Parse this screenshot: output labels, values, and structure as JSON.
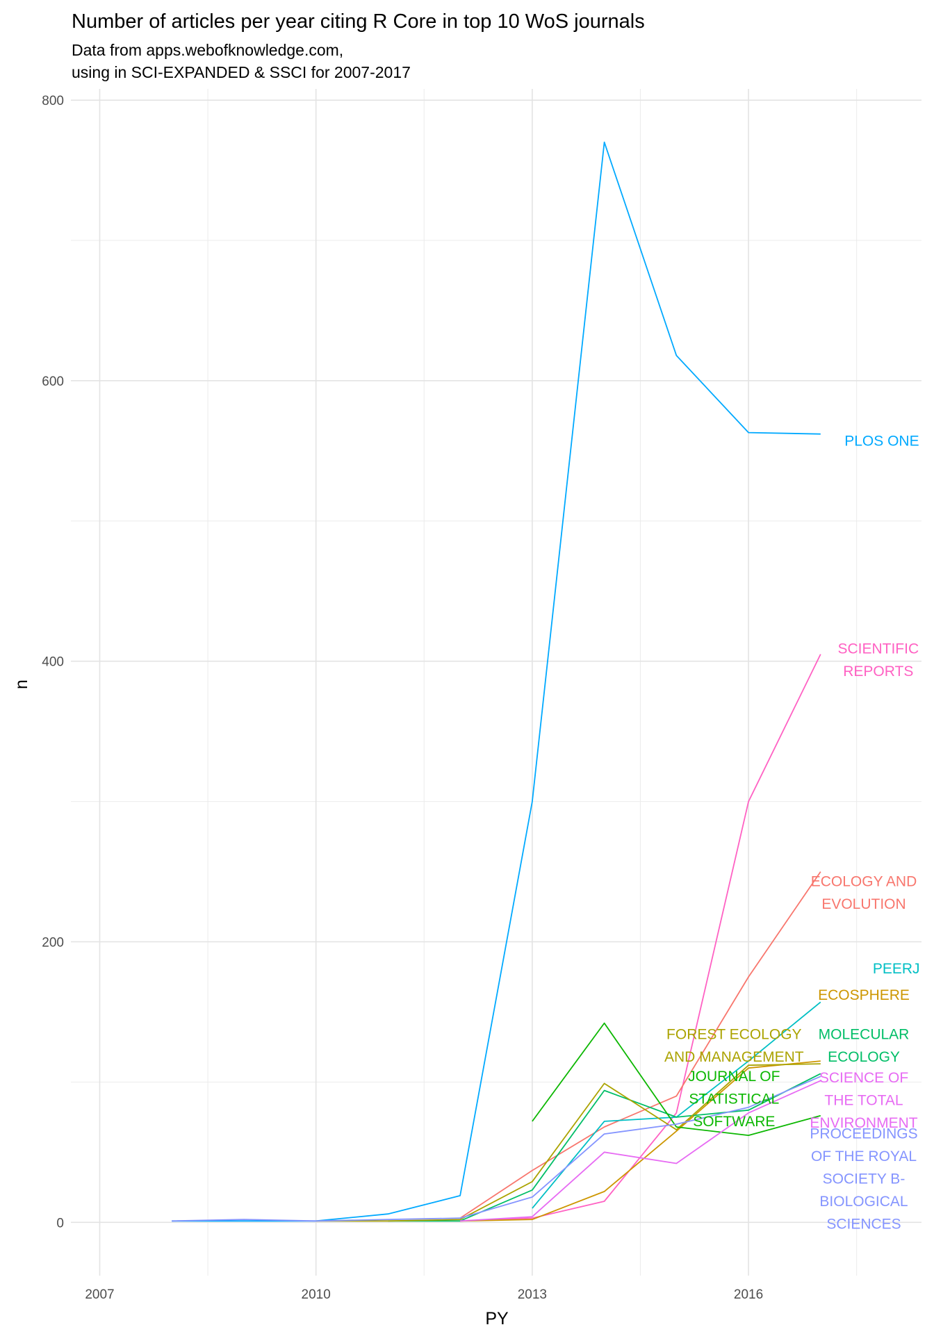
{
  "chart_data": {
    "type": "line",
    "title": "Number of articles per year citing R Core in top 10 WoS journals",
    "subtitle_lines": [
      "Data from apps.webofknowledge.com,",
      "using in SCI-EXPANDED & SSCI for 2007-2017"
    ],
    "xlabel": "PY",
    "ylabel": "n",
    "xlim": [
      2006.6,
      2018.4
    ],
    "ylim": [
      -38,
      808
    ],
    "x_ticks": [
      2007,
      2010,
      2013,
      2016
    ],
    "y_ticks": [
      0,
      200,
      400,
      600,
      800
    ],
    "grid": true,
    "legend": "direct labels at line ends",
    "series": [
      {
        "name": "PLOS ONE",
        "label_lines": [
          "PLOS ONE"
        ],
        "color": "#00a9ff",
        "points": [
          [
            2008,
            1
          ],
          [
            2009,
            1
          ],
          [
            2010,
            1
          ],
          [
            2011,
            6
          ],
          [
            2012,
            19
          ],
          [
            2013,
            300
          ],
          [
            2014,
            770
          ],
          [
            2015,
            618
          ],
          [
            2016,
            563
          ],
          [
            2017,
            562
          ]
        ]
      },
      {
        "name": "SCIENTIFIC REPORTS",
        "label_lines": [
          "SCIENTIFIC",
          "REPORTS"
        ],
        "color": "#ff61c3",
        "points": [
          [
            2012,
            1
          ],
          [
            2013,
            3
          ],
          [
            2014,
            15
          ],
          [
            2015,
            78
          ],
          [
            2016,
            300
          ],
          [
            2017,
            405
          ]
        ]
      },
      {
        "name": "ECOLOGY AND EVOLUTION",
        "label_lines": [
          "ECOLOGY AND",
          "EVOLUTION"
        ],
        "color": "#f8766d",
        "points": [
          [
            2012,
            3
          ],
          [
            2013,
            37
          ],
          [
            2014,
            68
          ],
          [
            2015,
            90
          ],
          [
            2016,
            175
          ],
          [
            2017,
            250
          ]
        ]
      },
      {
        "name": "PEERJ",
        "label_lines": [
          "PEERJ"
        ],
        "color": "#00bfc4",
        "points": [
          [
            2013,
            10
          ],
          [
            2014,
            72
          ],
          [
            2015,
            75
          ],
          [
            2016,
            115
          ],
          [
            2017,
            157
          ]
        ]
      },
      {
        "name": "ECOSPHERE",
        "label_lines": [
          "ECOSPHERE"
        ],
        "color": "#cd9600",
        "points": [
          [
            2012,
            1
          ],
          [
            2013,
            2
          ],
          [
            2014,
            22
          ],
          [
            2015,
            65
          ],
          [
            2016,
            110
          ],
          [
            2017,
            115
          ]
        ]
      },
      {
        "name": "MOLECULAR ECOLOGY",
        "label_lines": [
          "MOLECULAR",
          "ECOLOGY"
        ],
        "color": "#00be67",
        "points": [
          [
            2011,
            1
          ],
          [
            2012,
            1
          ],
          [
            2013,
            23
          ],
          [
            2014,
            94
          ],
          [
            2015,
            75
          ],
          [
            2016,
            80
          ],
          [
            2017,
            106
          ]
        ]
      },
      {
        "name": "FOREST ECOLOGY AND MANAGEMENT",
        "label_lines": [
          "FOREST ECOLOGY",
          "AND MANAGEMENT"
        ],
        "color": "#aba300",
        "points": [
          [
            2010,
            1
          ],
          [
            2011,
            1
          ],
          [
            2012,
            2
          ],
          [
            2013,
            29
          ],
          [
            2014,
            99
          ],
          [
            2015,
            66
          ],
          [
            2016,
            112
          ],
          [
            2017,
            113
          ]
        ]
      },
      {
        "name": "JOURNAL OF STATISTICAL SOFTWARE",
        "label_lines": [
          "JOURNAL OF",
          "STATISTICAL",
          "SOFTWARE"
        ],
        "color": "#0cb702",
        "points": [
          [
            2013,
            72
          ],
          [
            2014,
            142
          ],
          [
            2015,
            68
          ],
          [
            2016,
            62
          ],
          [
            2017,
            76
          ]
        ]
      },
      {
        "name": "SCIENCE OF THE TOTAL ENVIRONMENT",
        "label_lines": [
          "SCIENCE OF",
          "THE TOTAL",
          "ENVIRONMENT"
        ],
        "color": "#e76bf3",
        "points": [
          [
            2012,
            1
          ],
          [
            2013,
            4
          ],
          [
            2014,
            50
          ],
          [
            2015,
            42
          ],
          [
            2016,
            78
          ],
          [
            2017,
            101
          ]
        ]
      },
      {
        "name": "PROCEEDINGS OF THE ROYAL SOCIETY B-BIOLOGICAL SCIENCES",
        "label_lines": [
          "PROCEEDINGS",
          "OF THE ROYAL",
          "SOCIETY B-",
          "BIOLOGICAL",
          "SCIENCES"
        ],
        "color": "#8494ff",
        "points": [
          [
            2008,
            1
          ],
          [
            2009,
            2
          ],
          [
            2010,
            1
          ],
          [
            2011,
            2
          ],
          [
            2012,
            3
          ],
          [
            2013,
            18
          ],
          [
            2014,
            63
          ],
          [
            2015,
            70
          ],
          [
            2016,
            82
          ],
          [
            2017,
            104
          ]
        ]
      }
    ]
  }
}
